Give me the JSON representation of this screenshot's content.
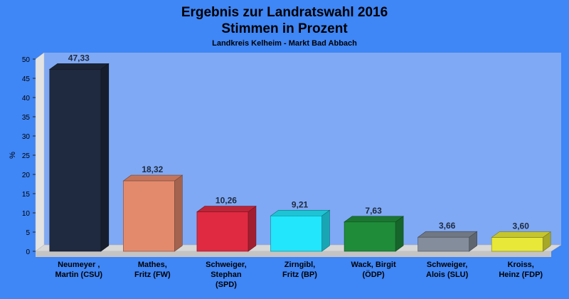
{
  "chart_data": {
    "type": "bar",
    "title": "Ergebnis zur Landratswahl 2016",
    "title_line2": "Stimmen in Prozent",
    "subtitle": "Landkreis Kelheim - Markt Bad Abbach",
    "ylabel": "%",
    "xlabel": "",
    "ylim": [
      0,
      50
    ],
    "yticks": [
      0,
      5,
      10,
      15,
      20,
      25,
      30,
      35,
      40,
      45,
      50
    ],
    "grid": false,
    "legend": "none",
    "categories": [
      [
        "Neumeyer ,",
        "Martin (CSU)"
      ],
      [
        "Mathes,",
        "Fritz (FW)"
      ],
      [
        "Schweiger,",
        "Stephan",
        "(SPD)"
      ],
      [
        "Zirngibl,",
        "Fritz (BP)"
      ],
      [
        "Wack, Birgit",
        "(ÖDP)"
      ],
      [
        "Schweiger,",
        "Alois (SLU)"
      ],
      [
        "Kroiss,",
        "Heinz (FDP)"
      ]
    ],
    "values": [
      47.33,
      18.32,
      10.26,
      9.21,
      7.63,
      3.66,
      3.6
    ],
    "value_labels": [
      "47,33",
      "18,32",
      "10,26",
      "9,21",
      "7,63",
      "3,66",
      "3,60"
    ],
    "colors": [
      "#1f2a40",
      "#e48a6c",
      "#e02a42",
      "#22e6fb",
      "#1f8c3a",
      "#848d9c",
      "#e8e838"
    ],
    "background": "#3f86f6",
    "plot_background": "#7fa9f4"
  }
}
